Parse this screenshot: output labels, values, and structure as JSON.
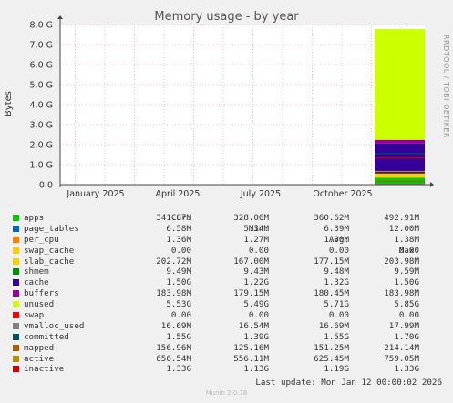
{
  "title": "Memory usage - by year",
  "watermark": "RRDTOOL / TOBI OETIKER",
  "footer": "Munin 2.0.76",
  "last_update": "Last update: Mon Jan 12 00:00:02 2026",
  "legend_headers": [
    "Cur:",
    "Min:",
    "Avg:",
    "Max:"
  ],
  "colors": {
    "grid_minor": "#eecccc",
    "axis": "#444444",
    "background": "#ffffff"
  },
  "chart_data": {
    "type": "area",
    "title": "Memory usage - by year",
    "ylabel": "Bytes",
    "ylim": [
      0,
      8.0
    ],
    "y_unit": "G",
    "y_ticks": [
      "0.0",
      "1.0 G",
      "2.0 G",
      "3.0 G",
      "4.0 G",
      "5.0 G",
      "6.0 G",
      "7.0 G",
      "8.0 G"
    ],
    "x_ticks": [
      "January 2025",
      "April 2025",
      "July 2025",
      "October 2025"
    ],
    "grid": true,
    "series": [
      {
        "name": "apps",
        "color": "#00cc00",
        "cur": "341.87M",
        "min": "328.06M",
        "avg": "360.62M",
        "max": "492.91M",
        "value_gb": 0.34
      },
      {
        "name": "page_tables",
        "color": "#0066b3",
        "cur": "6.58M",
        "min": "5.34M",
        "avg": "6.39M",
        "max": "12.00M",
        "value_gb": 0.01
      },
      {
        "name": "per_cpu",
        "color": "#ff8000",
        "cur": "1.36M",
        "min": "1.27M",
        "avg": "1.30M",
        "max": "1.38M",
        "value_gb": 0.0
      },
      {
        "name": "swap_cache",
        "color": "#ffcc00",
        "cur": "0.00",
        "min": "0.00",
        "avg": "0.00",
        "max": "0.00",
        "value_gb": 0.0
      },
      {
        "name": "slab_cache",
        "color": "#ffcc00",
        "cur": "202.72M",
        "min": "167.00M",
        "avg": "177.15M",
        "max": "203.98M",
        "value_gb": 0.2
      },
      {
        "name": "shmem",
        "color": "#008f00",
        "cur": "9.49M",
        "min": "9.43M",
        "avg": "9.48M",
        "max": "9.59M",
        "value_gb": 0.01
      },
      {
        "name": "cache",
        "color": "#330099",
        "cur": "1.50G",
        "min": "1.22G",
        "avg": "1.32G",
        "max": "1.50G",
        "value_gb": 1.5
      },
      {
        "name": "buffers",
        "color": "#990099",
        "cur": "183.98M",
        "min": "179.15M",
        "avg": "180.45M",
        "max": "183.98M",
        "value_gb": 0.18
      },
      {
        "name": "unused",
        "color": "#ccff00",
        "cur": "5.53G",
        "min": "5.49G",
        "avg": "5.71G",
        "max": "5.85G",
        "value_gb": 5.53
      },
      {
        "name": "swap",
        "color": "#ff0000",
        "cur": "0.00",
        "min": "0.00",
        "avg": "0.00",
        "max": "0.00",
        "value_gb": 0.0
      },
      {
        "name": "vmalloc_used",
        "color": "#808080",
        "cur": "16.69M",
        "min": "16.54M",
        "avg": "16.69M",
        "max": "17.99M",
        "value_gb": 0.02
      },
      {
        "name": "committed",
        "color": "#004d66",
        "cur": "1.55G",
        "min": "1.39G",
        "avg": "1.55G",
        "max": "1.70G",
        "value_gb": 1.55
      },
      {
        "name": "mapped",
        "color": "#b35a00",
        "cur": "156.96M",
        "min": "125.16M",
        "avg": "151.25M",
        "max": "214.14M",
        "value_gb": 0.16
      },
      {
        "name": "active",
        "color": "#b38f00",
        "cur": "656.54M",
        "min": "556.11M",
        "avg": "625.45M",
        "max": "759.05M",
        "value_gb": 0.66
      },
      {
        "name": "inactive",
        "color": "#cc0000",
        "cur": "1.33G",
        "min": "1.13G",
        "avg": "1.19G",
        "max": "1.33G",
        "value_gb": 1.33
      }
    ],
    "data_start": "December 2025"
  }
}
